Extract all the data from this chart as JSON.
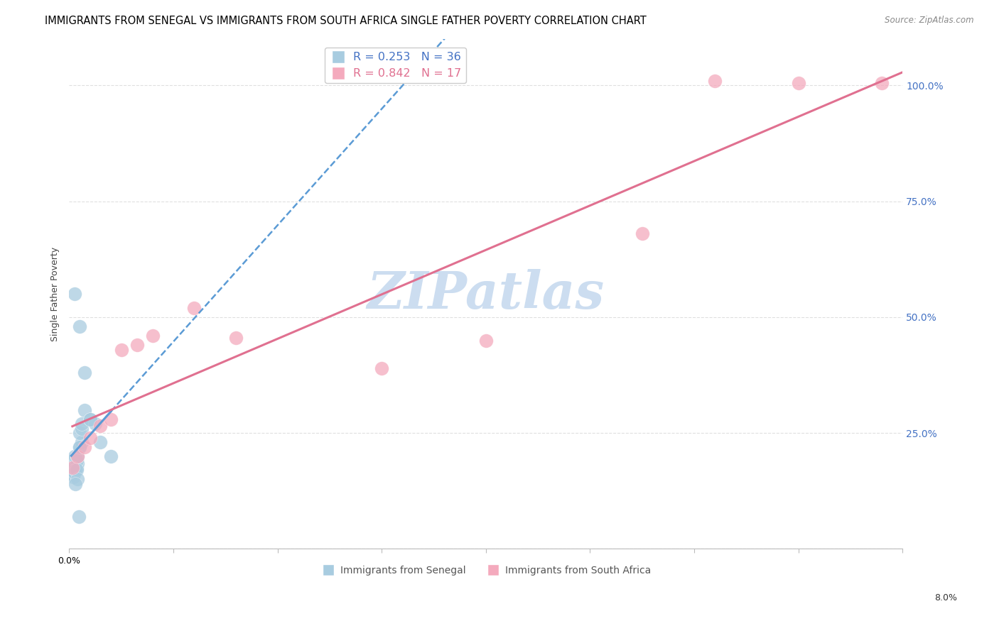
{
  "title": "IMMIGRANTS FROM SENEGAL VS IMMIGRANTS FROM SOUTH AFRICA SINGLE FATHER POVERTY CORRELATION CHART",
  "source": "Source: ZipAtlas.com",
  "ylabel": "Single Father Poverty",
  "right_yticks": [
    0.0,
    0.25,
    0.5,
    0.75,
    1.0
  ],
  "right_yticklabels": [
    "",
    "25.0%",
    "50.0%",
    "75.0%",
    "100.0%"
  ],
  "xlim": [
    0.0,
    0.08
  ],
  "ylim": [
    0.0,
    1.1
  ],
  "watermark": "ZIPatlas",
  "senegal_x": [
    0.0002,
    0.0003,
    0.0004,
    0.0005,
    0.0006,
    0.0007,
    0.0008,
    0.001,
    0.0012,
    0.0003,
    0.0004,
    0.0005,
    0.0006,
    0.0007,
    0.0008,
    0.001,
    0.0012,
    0.0015,
    0.0003,
    0.0004,
    0.0005,
    0.0006,
    0.0007,
    0.001,
    0.0012,
    0.002,
    0.0025,
    0.003,
    0.0005,
    0.001,
    0.0015,
    0.002,
    0.004,
    0.0008,
    0.0006,
    0.0009
  ],
  "senegal_y": [
    0.175,
    0.18,
    0.19,
    0.2,
    0.17,
    0.175,
    0.185,
    0.22,
    0.23,
    0.17,
    0.175,
    0.175,
    0.18,
    0.19,
    0.2,
    0.25,
    0.26,
    0.3,
    0.16,
    0.155,
    0.165,
    0.17,
    0.17,
    0.22,
    0.27,
    0.28,
    0.27,
    0.23,
    0.55,
    0.48,
    0.38,
    0.28,
    0.2,
    0.15,
    0.14,
    0.07
  ],
  "southafrica_x": [
    0.0003,
    0.0008,
    0.0015,
    0.002,
    0.003,
    0.004,
    0.005,
    0.0065,
    0.008,
    0.012,
    0.016,
    0.03,
    0.04,
    0.055,
    0.062,
    0.07,
    0.078
  ],
  "southafrica_y": [
    0.175,
    0.2,
    0.22,
    0.24,
    0.265,
    0.28,
    0.43,
    0.44,
    0.46,
    0.52,
    0.455,
    0.39,
    0.45,
    0.68,
    1.01,
    1.005,
    1.005
  ],
  "blue_dot_color": "#a8cce0",
  "pink_dot_color": "#f4aabd",
  "blue_line_color": "#5b9bd5",
  "pink_line_color": "#e07090",
  "grid_color": "#e0e0e0",
  "watermark_color": "#ccddf0",
  "title_fontsize": 10.5,
  "source_fontsize": 8.5,
  "axis_label_fontsize": 9,
  "tick_fontsize": 9,
  "right_tick_color": "#4472c4",
  "legend_color_blue": "#4472c4",
  "legend_color_pink": "#e07090"
}
